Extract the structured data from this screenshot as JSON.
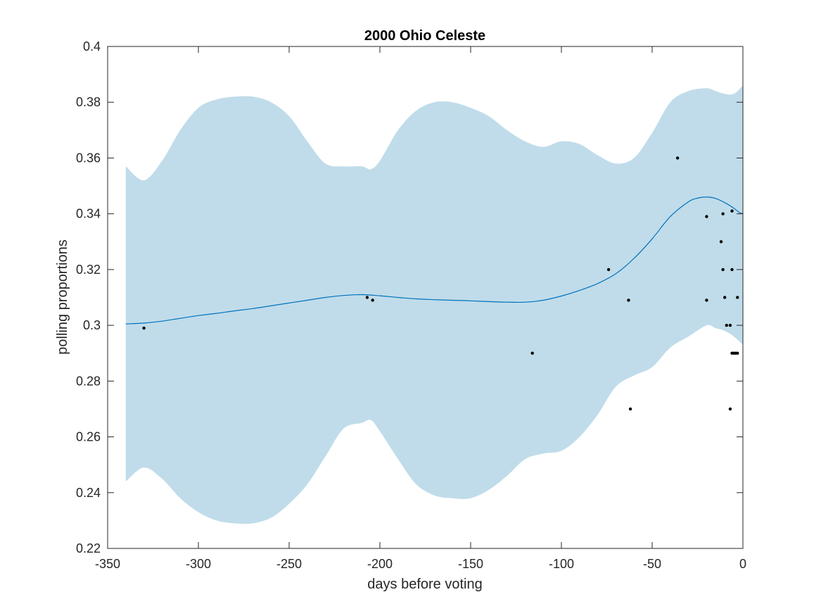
{
  "chart_data": {
    "type": "line",
    "title": "2000 Ohio Celeste",
    "xlabel": "days before voting",
    "ylabel": "polling proportions",
    "xlim": [
      -350,
      0
    ],
    "ylim": [
      0.22,
      0.4
    ],
    "grid": false,
    "box": true,
    "x_ticks": [
      -350,
      -300,
      -250,
      -200,
      -150,
      -100,
      -50,
      0
    ],
    "x_tick_labels": [
      "-350",
      "-300",
      "-250",
      "-200",
      "-150",
      "-100",
      "-50",
      "0"
    ],
    "y_ticks": [
      0.22,
      0.24,
      0.26,
      0.28,
      0.3,
      0.32,
      0.34,
      0.36,
      0.38,
      0.4
    ],
    "y_tick_labels": [
      "0.22",
      "0.24",
      "0.26",
      "0.28",
      "0.3",
      "0.32",
      "0.34",
      "0.36",
      "0.38",
      "0.4"
    ],
    "colors": {
      "band": "#c0dcea",
      "line": "#0072bd",
      "points": "#000000",
      "axes": "#262626"
    },
    "band": {
      "x": [
        -340,
        -330,
        -320,
        -310,
        -300,
        -290,
        -280,
        -270,
        -260,
        -250,
        -240,
        -230,
        -220,
        -210,
        -205,
        -200,
        -190,
        -180,
        -170,
        -160,
        -150,
        -140,
        -130,
        -120,
        -110,
        -100,
        -90,
        -80,
        -70,
        -60,
        -50,
        -40,
        -30,
        -20,
        -15,
        -10,
        -5,
        0
      ],
      "upper": [
        0.357,
        0.352,
        0.359,
        0.37,
        0.378,
        0.381,
        0.382,
        0.382,
        0.38,
        0.375,
        0.366,
        0.358,
        0.357,
        0.357,
        0.356,
        0.359,
        0.37,
        0.377,
        0.38,
        0.38,
        0.378,
        0.375,
        0.37,
        0.366,
        0.364,
        0.366,
        0.365,
        0.361,
        0.358,
        0.36,
        0.369,
        0.38,
        0.384,
        0.385,
        0.384,
        0.383,
        0.383,
        0.386
      ],
      "lower": [
        0.244,
        0.249,
        0.245,
        0.238,
        0.233,
        0.23,
        0.229,
        0.229,
        0.231,
        0.236,
        0.243,
        0.253,
        0.263,
        0.265,
        0.266,
        0.262,
        0.252,
        0.243,
        0.239,
        0.238,
        0.238,
        0.241,
        0.246,
        0.252,
        0.254,
        0.255,
        0.26,
        0.268,
        0.278,
        0.282,
        0.285,
        0.292,
        0.296,
        0.3,
        0.299,
        0.298,
        0.296,
        0.293
      ]
    },
    "series": [
      {
        "x": [
          -340,
          -330,
          -320,
          -310,
          -300,
          -290,
          -280,
          -270,
          -260,
          -250,
          -240,
          -230,
          -220,
          -210,
          -200,
          -190,
          -180,
          -170,
          -160,
          -150,
          -140,
          -130,
          -120,
          -110,
          -100,
          -90,
          -80,
          -70,
          -60,
          -50,
          -40,
          -30,
          -25,
          -20,
          -15,
          -10,
          -5,
          -2,
          0
        ],
        "y": [
          0.3005,
          0.3008,
          0.3015,
          0.3025,
          0.3035,
          0.3043,
          0.3052,
          0.306,
          0.307,
          0.308,
          0.309,
          0.31,
          0.3107,
          0.311,
          0.3106,
          0.31,
          0.3095,
          0.3092,
          0.309,
          0.3088,
          0.3085,
          0.3083,
          0.3083,
          0.309,
          0.3105,
          0.3125,
          0.315,
          0.3185,
          0.324,
          0.331,
          0.339,
          0.3443,
          0.3456,
          0.346,
          0.3455,
          0.344,
          0.342,
          0.3405,
          0.34
        ]
      }
    ],
    "points": [
      {
        "x": -330,
        "y": 0.299
      },
      {
        "x": -207,
        "y": 0.31
      },
      {
        "x": -204,
        "y": 0.309
      },
      {
        "x": -116,
        "y": 0.29
      },
      {
        "x": -74,
        "y": 0.32
      },
      {
        "x": -63,
        "y": 0.309
      },
      {
        "x": -62,
        "y": 0.27
      },
      {
        "x": -36,
        "y": 0.36
      },
      {
        "x": -20,
        "y": 0.339
      },
      {
        "x": -20,
        "y": 0.309
      },
      {
        "x": -12,
        "y": 0.33
      },
      {
        "x": -11,
        "y": 0.34
      },
      {
        "x": -11,
        "y": 0.32
      },
      {
        "x": -10,
        "y": 0.31
      },
      {
        "x": -9,
        "y": 0.3
      },
      {
        "x": -7,
        "y": 0.27
      },
      {
        "x": -7,
        "y": 0.3
      },
      {
        "x": -6,
        "y": 0.341
      },
      {
        "x": -6,
        "y": 0.32
      },
      {
        "x": -6,
        "y": 0.29
      },
      {
        "x": -5,
        "y": 0.29
      },
      {
        "x": -4,
        "y": 0.29
      },
      {
        "x": -3,
        "y": 0.29
      },
      {
        "x": -3,
        "y": 0.31
      }
    ]
  }
}
